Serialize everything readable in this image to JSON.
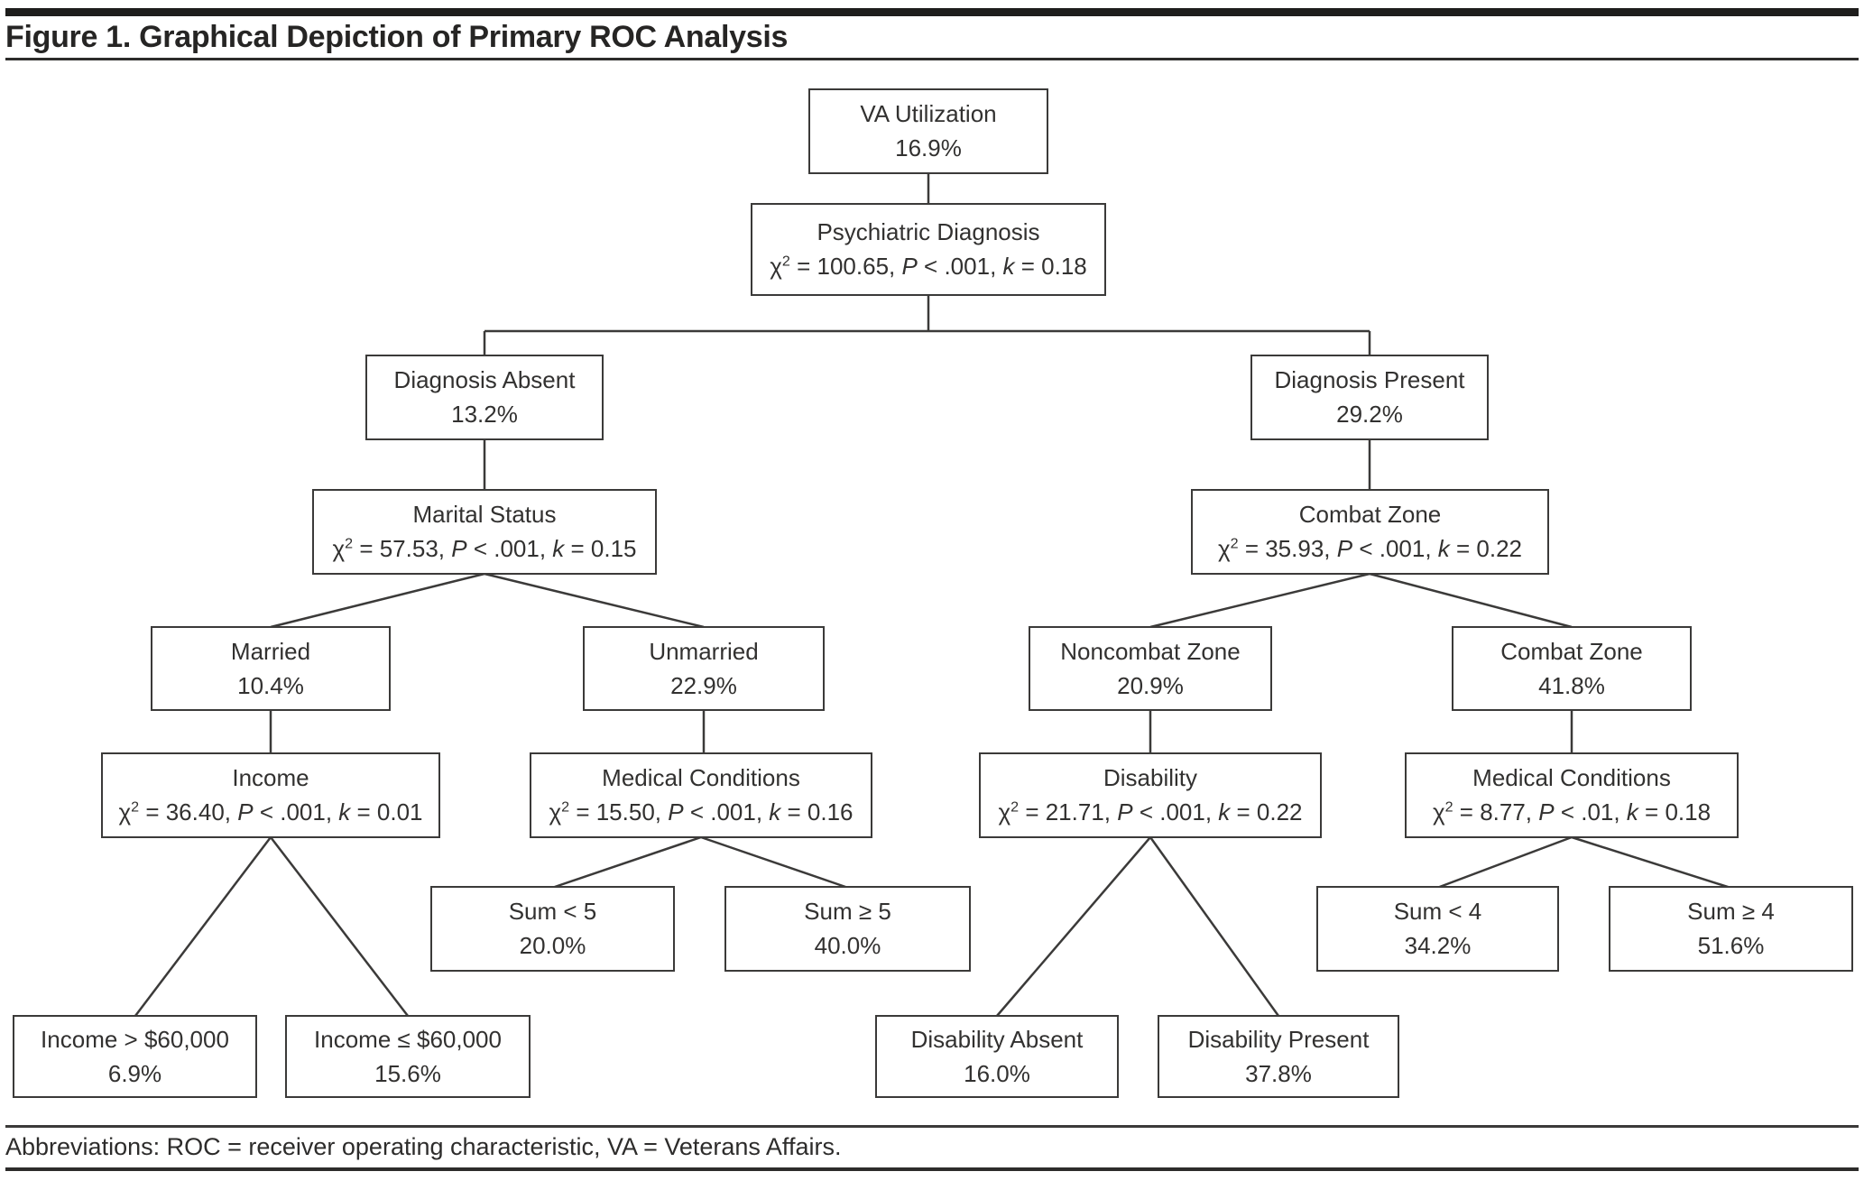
{
  "header": {
    "title": "Figure 1. Graphical Depiction of Primary ROC Analysis"
  },
  "colors": {
    "ink": "#323130",
    "line": "#3b3a39",
    "header_bar": "#1e1d1c",
    "background": "#ffffff"
  },
  "nodes": {
    "va_utilization": {
      "label": "VA Utilization",
      "value": "16.9%"
    },
    "psychiatric_diagnosis": {
      "label": "Psychiatric Diagnosis",
      "stat": "χ² = 100.65, P < .001, k = 0.18"
    },
    "diagnosis_absent": {
      "label": "Diagnosis Absent",
      "value": "13.2%"
    },
    "diagnosis_present": {
      "label": "Diagnosis Present",
      "value": "29.2%"
    },
    "marital_status": {
      "label": "Marital Status",
      "stat": "χ² = 57.53, P < .001, k = 0.15"
    },
    "combat_zone_split": {
      "label": "Combat Zone",
      "stat": "χ² = 35.93, P < .001, k = 0.22"
    },
    "married": {
      "label": "Married",
      "value": "10.4%"
    },
    "unmarried": {
      "label": "Unmarried",
      "value": "22.9%"
    },
    "noncombat_zone": {
      "label": "Noncombat Zone",
      "value": "20.9%"
    },
    "combat_zone": {
      "label": "Combat Zone",
      "value": "41.8%"
    },
    "income_split": {
      "label": "Income",
      "stat": "χ² = 36.40, P < .001, k = 0.01"
    },
    "medical_conditions_left": {
      "label": "Medical Conditions",
      "stat": "χ² = 15.50, P < .001, k = 0.16"
    },
    "disability_split": {
      "label": "Disability",
      "stat": "χ² = 21.71, P < .001, k = 0.22"
    },
    "medical_conditions_right": {
      "label": "Medical Conditions",
      "stat": "χ² = 8.77, P < .01, k = 0.18"
    },
    "sum_lt_5": {
      "label": "Sum < 5",
      "value": "20.0%"
    },
    "sum_ge_5": {
      "label": "Sum ≥ 5",
      "value": "40.0%"
    },
    "sum_lt_4": {
      "label": "Sum < 4",
      "value": "34.2%"
    },
    "sum_ge_4": {
      "label": "Sum ≥ 4",
      "value": "51.6%"
    },
    "income_gt_60000": {
      "label": "Income > $60,000",
      "value": "6.9%"
    },
    "income_le_60000": {
      "label": "Income ≤ $60,000",
      "value": "15.6%"
    },
    "disability_absent": {
      "label": "Disability Absent",
      "value": "16.0%"
    },
    "disability_present": {
      "label": "Disability Present",
      "value": "37.8%"
    }
  },
  "footer": {
    "text": "Abbreviations: ROC = receiver operating characteristic, VA = Veterans Affairs."
  }
}
